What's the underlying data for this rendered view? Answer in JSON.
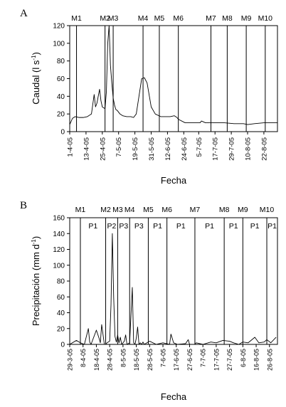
{
  "chart_data": [
    {
      "panel_label": "A",
      "type": "line",
      "ylabel": "Caudal (l s-1)",
      "ylabel_main": "Caudal (l s",
      "ylabel_sup": "-1",
      "ylabel_end": ")",
      "xlabel": "Fecha",
      "ylim": [
        0,
        120
      ],
      "yticks": [
        "0",
        "20",
        "40",
        "60",
        "80",
        "100",
        "120"
      ],
      "xlim": [
        "2005-04-01",
        "2005-09-01"
      ],
      "xticks": [
        {
          "label": "1-4-05",
          "date": "2005-04-01"
        },
        {
          "label": "13-4-05",
          "date": "2005-04-13"
        },
        {
          "label": "25-4-05",
          "date": "2005-04-25"
        },
        {
          "label": "7-5-05",
          "date": "2005-05-07"
        },
        {
          "label": "19-5-05",
          "date": "2005-05-19"
        },
        {
          "label": "31-5-05",
          "date": "2005-05-31"
        },
        {
          "label": "12-6-05",
          "date": "2005-06-12"
        },
        {
          "label": "24-6-05",
          "date": "2005-06-24"
        },
        {
          "label": "5-7-05",
          "date": "2005-07-05"
        },
        {
          "label": "17-7-05",
          "date": "2005-07-17"
        },
        {
          "label": "29-7-05",
          "date": "2005-07-29"
        },
        {
          "label": "10-8-05",
          "date": "2005-08-10"
        },
        {
          "label": "22-8-05",
          "date": "2005-08-22"
        }
      ],
      "markers": [
        {
          "label": "M1",
          "date": "2005-04-06"
        },
        {
          "label": "M2",
          "date": "2005-04-27"
        },
        {
          "label": "M3",
          "date": "2005-05-03"
        },
        {
          "label": "M4",
          "date": "2005-05-25"
        },
        {
          "label": "M5",
          "date": "2005-06-06"
        },
        {
          "label": "M6",
          "date": "2005-06-20"
        },
        {
          "label": "M7",
          "date": "2005-07-14"
        },
        {
          "label": "M8",
          "date": "2005-07-26"
        },
        {
          "label": "M9",
          "date": "2005-08-09"
        },
        {
          "label": "M10",
          "date": "2005-08-23"
        }
      ],
      "series": [
        {
          "x": [
            "2005-04-01",
            "2005-04-03",
            "2005-04-05",
            "2005-04-08",
            "2005-04-11",
            "2005-04-14",
            "2005-04-17",
            "2005-04-19",
            "2005-04-20",
            "2005-04-21",
            "2005-04-23",
            "2005-04-24",
            "2005-04-25",
            "2005-04-27",
            "2005-04-28",
            "2005-04-29",
            "2005-04-30",
            "2005-05-01",
            "2005-05-02",
            "2005-05-03",
            "2005-05-04",
            "2005-05-05",
            "2005-05-06",
            "2005-05-07",
            "2005-05-08",
            "2005-05-10",
            "2005-05-13",
            "2005-05-16",
            "2005-05-18",
            "2005-05-20",
            "2005-05-22",
            "2005-05-24",
            "2005-05-26",
            "2005-05-28",
            "2005-05-31",
            "2005-06-03",
            "2005-06-07",
            "2005-06-11",
            "2005-06-14",
            "2005-06-17",
            "2005-06-19",
            "2005-06-20",
            "2005-06-25",
            "2005-07-01",
            "2005-07-06",
            "2005-07-07",
            "2005-07-10",
            "2005-07-17",
            "2005-07-24",
            "2005-07-31",
            "2005-08-07",
            "2005-08-10",
            "2005-08-15",
            "2005-08-22",
            "2005-09-01"
          ],
          "y": [
            8,
            15,
            17,
            16,
            16,
            17,
            20,
            42,
            28,
            32,
            48,
            35,
            28,
            26,
            45,
            100,
            120,
            75,
            55,
            38,
            30,
            25,
            24,
            22,
            20,
            18,
            17,
            17,
            16,
            20,
            40,
            60,
            61,
            55,
            28,
            20,
            17,
            17,
            17,
            18,
            16,
            14,
            10,
            10,
            10,
            12,
            10,
            10,
            10,
            9,
            9,
            8,
            9,
            10,
            10
          ]
        }
      ]
    },
    {
      "panel_label": "B",
      "type": "line",
      "ylabel": "Precipitación (mm d-1)",
      "ylabel_main": "Precipitación (mm d",
      "ylabel_sup": "-1",
      "ylabel_end": ")",
      "xlabel": "Fecha",
      "ylim": [
        0,
        160
      ],
      "yticks": [
        "0",
        "20",
        "40",
        "60",
        "80",
        "100",
        "120",
        "140",
        "160"
      ],
      "xlim": [
        "2005-03-29",
        "2005-09-01"
      ],
      "xticks": [
        {
          "label": "29-3-05",
          "date": "2005-03-29"
        },
        {
          "label": "8-4-05",
          "date": "2005-04-08"
        },
        {
          "label": "18-4-05",
          "date": "2005-04-18"
        },
        {
          "label": "28-4-05",
          "date": "2005-04-28"
        },
        {
          "label": "8-5-05",
          "date": "2005-05-08"
        },
        {
          "label": "18-5-05",
          "date": "2005-05-18"
        },
        {
          "label": "28-5-05",
          "date": "2005-05-28"
        },
        {
          "label": "7-6-05",
          "date": "2005-06-07"
        },
        {
          "label": "17-6-05",
          "date": "2005-06-17"
        },
        {
          "label": "27-6-05",
          "date": "2005-06-27"
        },
        {
          "label": "7-7-05",
          "date": "2005-07-07"
        },
        {
          "label": "17-7-05",
          "date": "2005-07-17"
        },
        {
          "label": "27-7-05",
          "date": "2005-07-27"
        },
        {
          "label": "6-8-05",
          "date": "2005-08-06"
        },
        {
          "label": "16-8-05",
          "date": "2005-08-16"
        },
        {
          "label": "26-8-05",
          "date": "2005-08-26"
        }
      ],
      "markers": [
        {
          "label": "M1",
          "date": "2005-04-06"
        },
        {
          "label": "M2",
          "date": "2005-04-25"
        },
        {
          "label": "M3",
          "date": "2005-05-04"
        },
        {
          "label": "M4",
          "date": "2005-05-13"
        },
        {
          "label": "M5",
          "date": "2005-05-27"
        },
        {
          "label": "M6",
          "date": "2005-06-10"
        },
        {
          "label": "M7",
          "date": "2005-07-01"
        },
        {
          "label": "M8",
          "date": "2005-07-23"
        },
        {
          "label": "M9",
          "date": "2005-08-06"
        },
        {
          "label": "M10",
          "date": "2005-08-24"
        }
      ],
      "period_labels": [
        "P1",
        "P2",
        "P3",
        "P3",
        "P1",
        "P1",
        "P1",
        "P1",
        "P1",
        "P1"
      ],
      "series": [
        {
          "x": [
            "2005-03-29",
            "2005-04-03",
            "2005-04-06",
            "2005-04-09",
            "2005-04-12",
            "2005-04-13",
            "2005-04-14",
            "2005-04-18",
            "2005-04-20",
            "2005-04-21",
            "2005-04-22",
            "2005-04-24",
            "2005-04-25",
            "2005-04-26",
            "2005-04-28",
            "2005-04-29",
            "2005-04-30",
            "2005-05-01",
            "2005-05-02",
            "2005-05-03",
            "2005-05-04",
            "2005-05-05",
            "2005-05-06",
            "2005-05-07",
            "2005-05-09",
            "2005-05-10",
            "2005-05-11",
            "2005-05-13",
            "2005-05-15",
            "2005-05-16",
            "2005-05-17",
            "2005-05-18",
            "2005-05-19",
            "2005-05-20",
            "2005-05-21",
            "2005-05-22",
            "2005-05-23",
            "2005-05-24",
            "2005-05-25",
            "2005-05-28",
            "2005-06-02",
            "2005-06-07",
            "2005-06-12",
            "2005-06-13",
            "2005-06-15",
            "2005-06-18",
            "2005-06-24",
            "2005-06-26",
            "2005-06-27",
            "2005-07-01",
            "2005-07-02",
            "2005-07-07",
            "2005-07-13",
            "2005-07-17",
            "2005-07-22",
            "2005-07-27",
            "2005-07-30",
            "2005-08-03",
            "2005-08-06",
            "2005-08-10",
            "2005-08-15",
            "2005-08-18",
            "2005-08-22",
            "2005-08-24",
            "2005-08-27",
            "2005-08-31"
          ],
          "y": [
            0,
            5,
            2,
            0,
            20,
            3,
            0,
            18,
            8,
            2,
            25,
            0,
            0,
            2,
            4,
            50,
            140,
            60,
            10,
            3,
            12,
            2,
            9,
            0,
            4,
            12,
            0,
            2,
            72,
            2,
            0,
            8,
            22,
            0,
            2,
            0,
            3,
            0,
            1,
            4,
            0,
            2,
            0,
            13,
            2,
            0,
            1,
            6,
            0,
            0,
            2,
            0,
            3,
            2,
            5,
            4,
            2,
            0,
            3,
            2,
            9,
            2,
            3,
            6,
            2,
            9
          ]
        }
      ]
    }
  ]
}
